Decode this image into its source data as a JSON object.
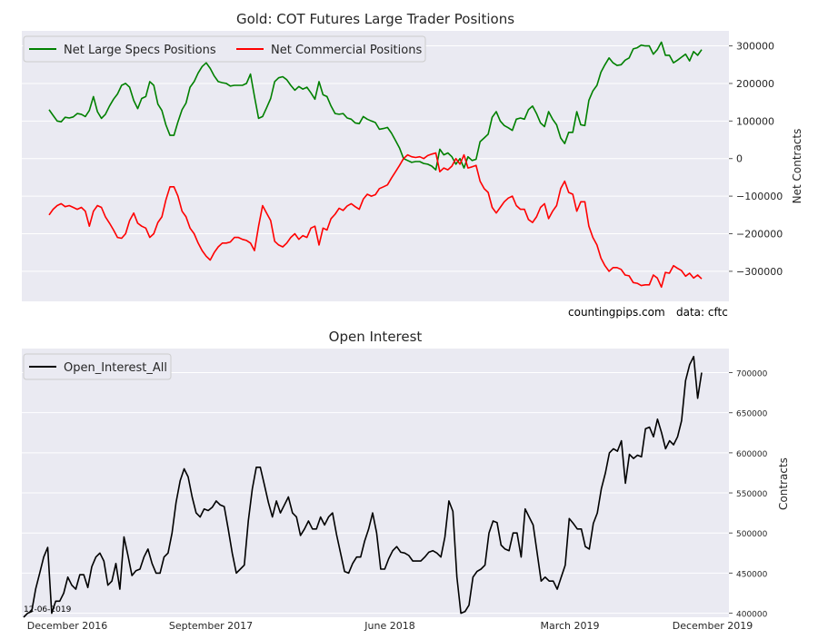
{
  "chart_data": [
    {
      "type": "line",
      "title": "Gold: COT Futures Large Trader Positions",
      "ylabel": "Net Contracts",
      "ylim": [
        -380000,
        340000
      ],
      "yticks": [
        300000,
        200000,
        100000,
        0,
        -100000,
        -200000,
        -300000
      ],
      "grid": true,
      "legend": "top-left",
      "series": [
        {
          "name": "Net Large Specs Positions",
          "color": "#008000",
          "values": [
            130000,
            115000,
            100000,
            98000,
            110000,
            108000,
            111000,
            120000,
            118000,
            112000,
            128000,
            165000,
            125000,
            107000,
            118000,
            140000,
            158000,
            172000,
            195000,
            200000,
            190000,
            155000,
            133000,
            160000,
            165000,
            205000,
            195000,
            145000,
            128000,
            90000,
            62000,
            62000,
            98000,
            130000,
            148000,
            190000,
            205000,
            228000,
            245000,
            255000,
            240000,
            220000,
            205000,
            202000,
            200000,
            193000,
            195000,
            195000,
            195000,
            200000,
            225000,
            165000,
            107000,
            112000,
            135000,
            160000,
            205000,
            215000,
            218000,
            210000,
            195000,
            182000,
            192000,
            185000,
            190000,
            175000,
            158000,
            205000,
            170000,
            165000,
            140000,
            120000,
            118000,
            120000,
            108000,
            105000,
            95000,
            93000,
            112000,
            105000,
            100000,
            96000,
            78000,
            80000,
            83000,
            68000,
            48000,
            28000,
            0,
            -5000,
            -10000,
            -8000,
            -8000,
            -13000,
            -15000,
            -20000,
            -30000,
            25000,
            10000,
            15000,
            5000,
            -15000,
            0,
            -25000,
            5000,
            -5000,
            -2000,
            45000,
            55000,
            65000,
            110000,
            125000,
            100000,
            88000,
            82000,
            75000,
            105000,
            108000,
            105000,
            130000,
            140000,
            120000,
            95000,
            85000,
            125000,
            105000,
            90000,
            55000,
            40000,
            70000,
            70000,
            125000,
            90000,
            88000,
            155000,
            180000,
            195000,
            230000,
            250000,
            268000,
            255000,
            248000,
            250000,
            262000,
            268000,
            292000,
            295000,
            302000,
            300000,
            300000,
            278000,
            290000,
            310000,
            275000,
            275000,
            255000,
            262000,
            270000,
            278000,
            260000,
            285000,
            275000,
            290000
          ]
        },
        {
          "name": "Net Commercial Positions",
          "color": "#ff0000",
          "values": [
            -150000,
            -135000,
            -125000,
            -120000,
            -128000,
            -125000,
            -130000,
            -135000,
            -130000,
            -140000,
            -180000,
            -140000,
            -125000,
            -130000,
            -155000,
            -172000,
            -190000,
            -210000,
            -212000,
            -200000,
            -165000,
            -145000,
            -172000,
            -180000,
            -185000,
            -210000,
            -200000,
            -170000,
            -155000,
            -110000,
            -75000,
            -75000,
            -100000,
            -140000,
            -155000,
            -185000,
            -200000,
            -225000,
            -245000,
            -260000,
            -270000,
            -250000,
            -235000,
            -225000,
            -225000,
            -222000,
            -210000,
            -210000,
            -215000,
            -218000,
            -225000,
            -245000,
            -180000,
            -125000,
            -145000,
            -165000,
            -220000,
            -230000,
            -235000,
            -225000,
            -210000,
            -200000,
            -215000,
            -205000,
            -210000,
            -185000,
            -180000,
            -230000,
            -185000,
            -190000,
            -160000,
            -148000,
            -132000,
            -138000,
            -126000,
            -120000,
            -128000,
            -135000,
            -108000,
            -95000,
            -100000,
            -96000,
            -80000,
            -75000,
            -70000,
            -52000,
            -35000,
            -18000,
            0,
            10000,
            5000,
            3000,
            5000,
            0,
            8000,
            12000,
            15000,
            -35000,
            -25000,
            -30000,
            -20000,
            0,
            -15000,
            10000,
            -25000,
            -22000,
            -18000,
            -60000,
            -80000,
            -90000,
            -130000,
            -145000,
            -130000,
            -115000,
            -105000,
            -100000,
            -125000,
            -135000,
            -135000,
            -162000,
            -170000,
            -155000,
            -130000,
            -120000,
            -160000,
            -140000,
            -125000,
            -80000,
            -60000,
            -90000,
            -95000,
            -140000,
            -115000,
            -115000,
            -180000,
            -210000,
            -230000,
            -265000,
            -285000,
            -300000,
            -290000,
            -290000,
            -295000,
            -310000,
            -312000,
            -330000,
            -332000,
            -338000,
            -336000,
            -336000,
            -310000,
            -318000,
            -342000,
            -303000,
            -305000,
            -285000,
            -292000,
            -298000,
            -313000,
            -305000,
            -318000,
            -310000,
            -320000
          ]
        }
      ],
      "annotations": [
        "countingpips.com",
        "data: cftc"
      ]
    },
    {
      "type": "line",
      "title": "Open Interest",
      "ylabel": "Contracts",
      "ylim": [
        395000,
        730000
      ],
      "yticks": [
        700000,
        650000,
        600000,
        550000,
        500000,
        450000,
        400000
      ],
      "grid": true,
      "legend": "top-left",
      "series": [
        {
          "name": "Open_Interest_All",
          "color": "#000000",
          "values": [
            395000,
            400000,
            402000,
            430000,
            450000,
            470000,
            482000,
            400000,
            415000,
            415000,
            425000,
            445000,
            435000,
            430000,
            448000,
            448000,
            432000,
            458000,
            470000,
            475000,
            465000,
            435000,
            440000,
            462000,
            430000,
            495000,
            472000,
            447000,
            453000,
            455000,
            470000,
            480000,
            462000,
            450000,
            450000,
            470000,
            475000,
            500000,
            538000,
            565000,
            580000,
            570000,
            545000,
            525000,
            520000,
            530000,
            528000,
            532000,
            540000,
            535000,
            533000,
            505000,
            475000,
            450000,
            455000,
            460000,
            515000,
            555000,
            582000,
            582000,
            560000,
            538000,
            520000,
            540000,
            525000,
            535000,
            545000,
            525000,
            520000,
            497000,
            505000,
            515000,
            505000,
            505000,
            520000,
            510000,
            520000,
            525000,
            498000,
            475000,
            452000,
            450000,
            462000,
            470000,
            470000,
            490000,
            505000,
            525000,
            500000,
            455000,
            455000,
            468000,
            478000,
            483000,
            476000,
            475000,
            472000,
            465000,
            465000,
            465000,
            470000,
            476000,
            478000,
            475000,
            470000,
            495000,
            540000,
            527000,
            445000,
            400000,
            402000,
            410000,
            445000,
            452000,
            455000,
            460000,
            500000,
            515000,
            513000,
            485000,
            480000,
            478000,
            500000,
            500000,
            470000,
            530000,
            520000,
            510000,
            475000,
            440000,
            445000,
            440000,
            440000,
            430000,
            445000,
            460000,
            518000,
            512000,
            505000,
            505000,
            483000,
            480000,
            512000,
            525000,
            555000,
            575000,
            600000,
            605000,
            602000,
            615000,
            562000,
            598000,
            593000,
            597000,
            595000,
            630000,
            632000,
            620000,
            642000,
            625000,
            605000,
            615000,
            610000,
            620000,
            640000,
            690000,
            710000,
            720000,
            668000,
            700000
          ]
        }
      ],
      "xtick_labels": [
        "December 2016",
        "September 2017",
        "June 2018",
        "March 2019",
        "December 2019"
      ],
      "annotations": [
        "12-06-2019"
      ]
    }
  ]
}
